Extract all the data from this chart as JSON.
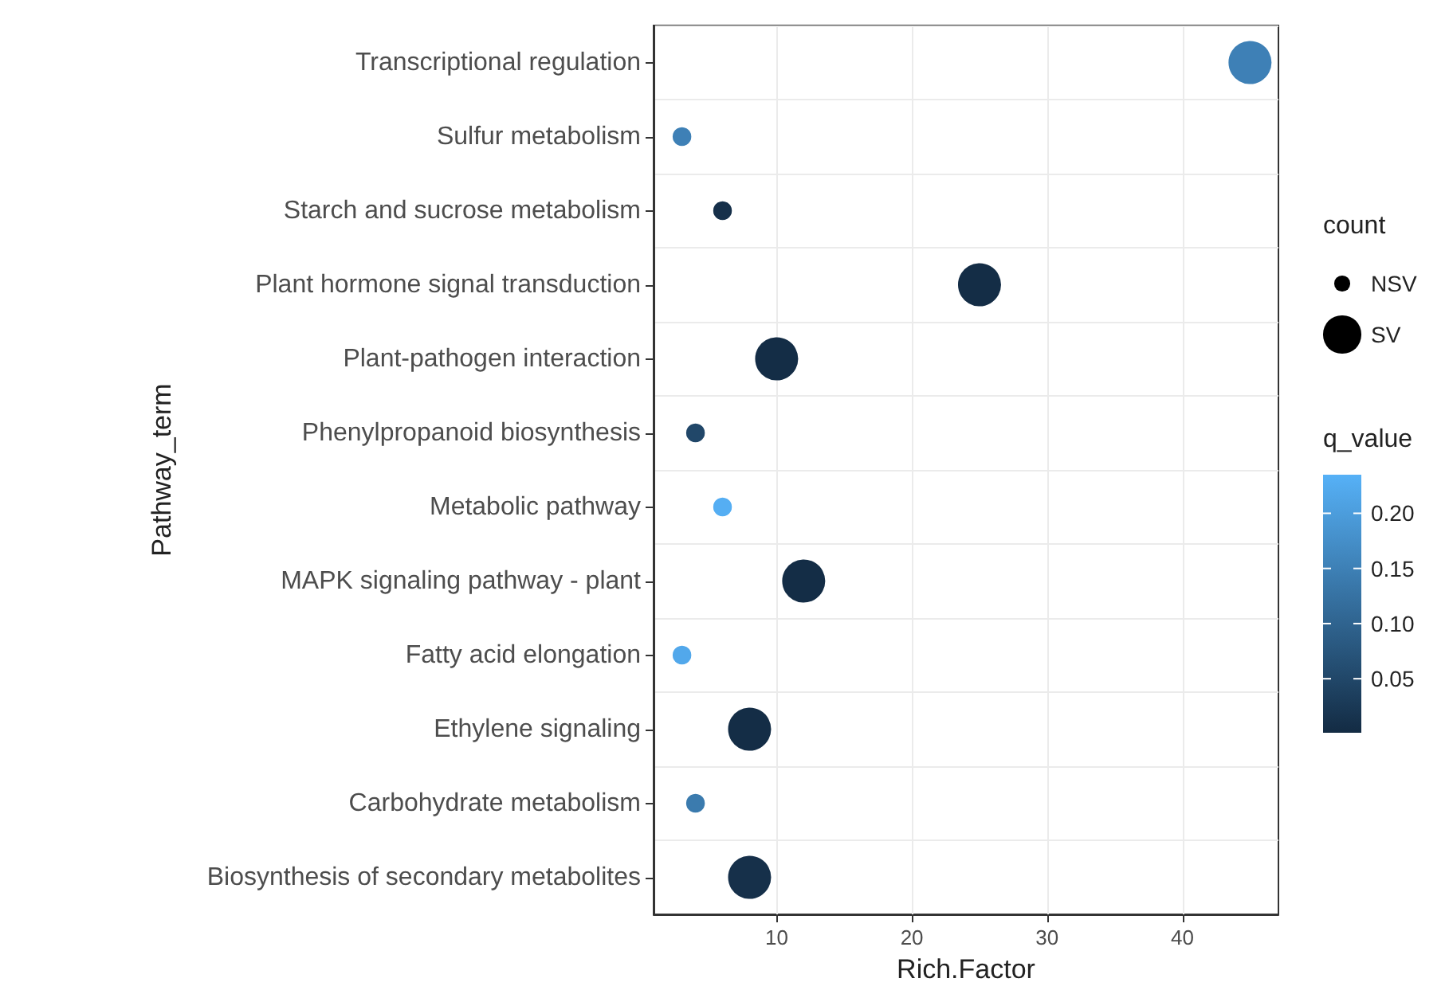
{
  "chart_data": {
    "type": "bubble",
    "orientation": "horizontal",
    "xlabel": "Rich.Factor",
    "ylabel": "Pathway_term",
    "legend_title": "count",
    "clabel": "q_value",
    "categories": [
      "Transcriptional regulation",
      "Sulfur metabolism",
      "Starch and sucrose metabolism",
      "Plant hormone signal transduction",
      "Plant-pathogen interaction",
      "Phenylpropanoid biosynthesis",
      "Metabolic pathway",
      "MAPK signaling pathway - plant",
      "Fatty acid elongation",
      "Ethylene signaling",
      "Carbohydrate metabolism",
      "Biosynthesis of secondary metabolites"
    ],
    "series": [
      {
        "name": "NSV",
        "values": [
          null,
          3,
          6,
          null,
          null,
          4,
          6,
          null,
          3,
          null,
          4,
          null
        ],
        "cvalues": [
          null,
          0.15,
          0.01,
          null,
          null,
          0.05,
          0.23,
          null,
          0.22,
          null,
          0.14,
          null
        ],
        "sizes": [
          null,
          0.17,
          0.17,
          null,
          null,
          0.17,
          0.17,
          null,
          0.17,
          null,
          0.17,
          null
        ],
        "colors": [
          null,
          "#3e80b6",
          "#16304a",
          null,
          null,
          "#214769",
          "#55aef3",
          null,
          "#52a8eb",
          null,
          "#3b7bae",
          null
        ]
      },
      {
        "name": "SV",
        "values": [
          45,
          null,
          null,
          25,
          10,
          null,
          null,
          12,
          null,
          8,
          null,
          8
        ],
        "cvalues": [
          0.15,
          null,
          null,
          0.005,
          0.005,
          null,
          null,
          0.005,
          null,
          0.005,
          null,
          0.01
        ],
        "sizes": [
          1,
          null,
          null,
          1,
          1,
          null,
          null,
          1,
          null,
          1,
          null,
          1
        ],
        "colors": [
          "#3e80b6",
          null,
          null,
          "#142d46",
          "#142d46",
          null,
          null,
          "#142d46",
          null,
          "#142d46",
          null,
          "#16304a"
        ]
      }
    ],
    "xlim": [
      0.9,
      47.1
    ],
    "xticks": [
      10,
      20,
      30,
      40
    ],
    "clim": [
      0.001,
      0.235
    ],
    "cticks": [
      0.05,
      {
        "value": 0.1,
        "label": "0.10"
      },
      0.15,
      {
        "value": 0.2,
        "label": "0.20"
      }
    ],
    "colors": [
      "#132b43",
      "#56b1f7"
    ],
    "grid": true,
    "legend": "right"
  }
}
